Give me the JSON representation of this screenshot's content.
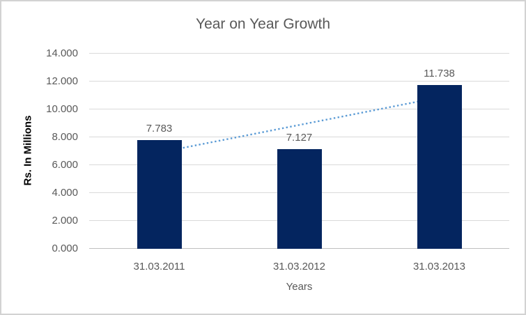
{
  "chart_data": {
    "type": "bar",
    "title": "Year on Year Growth",
    "xlabel": "Years",
    "ylabel": "Rs. In Millions",
    "categories": [
      "31.03.2011",
      "31.03.2012",
      "31.03.2013"
    ],
    "values": [
      7.783,
      7.127,
      11.738
    ],
    "value_labels": [
      "7.783",
      "7.127",
      "11.738"
    ],
    "ylim": [
      0,
      14
    ],
    "ytick_step": 2,
    "ytick_labels": [
      "0.000",
      "2.000",
      "4.000",
      "6.000",
      "8.000",
      "10.000",
      "12.000",
      "14.000"
    ],
    "grid": true,
    "legend": "none",
    "trendline": {
      "type": "linear",
      "style": "dotted"
    },
    "colors": {
      "bar": "#04255F",
      "trendline": "#5B9BD5",
      "gridline": "#D9D9D9",
      "axis_line": "#BFBFBF",
      "title_text": "#595959",
      "tick_text": "#595959",
      "data_label_text": "#595959",
      "y_axis_title_text": "#000000",
      "background": "#FFFFFF",
      "border": "#D2D2D2"
    }
  }
}
